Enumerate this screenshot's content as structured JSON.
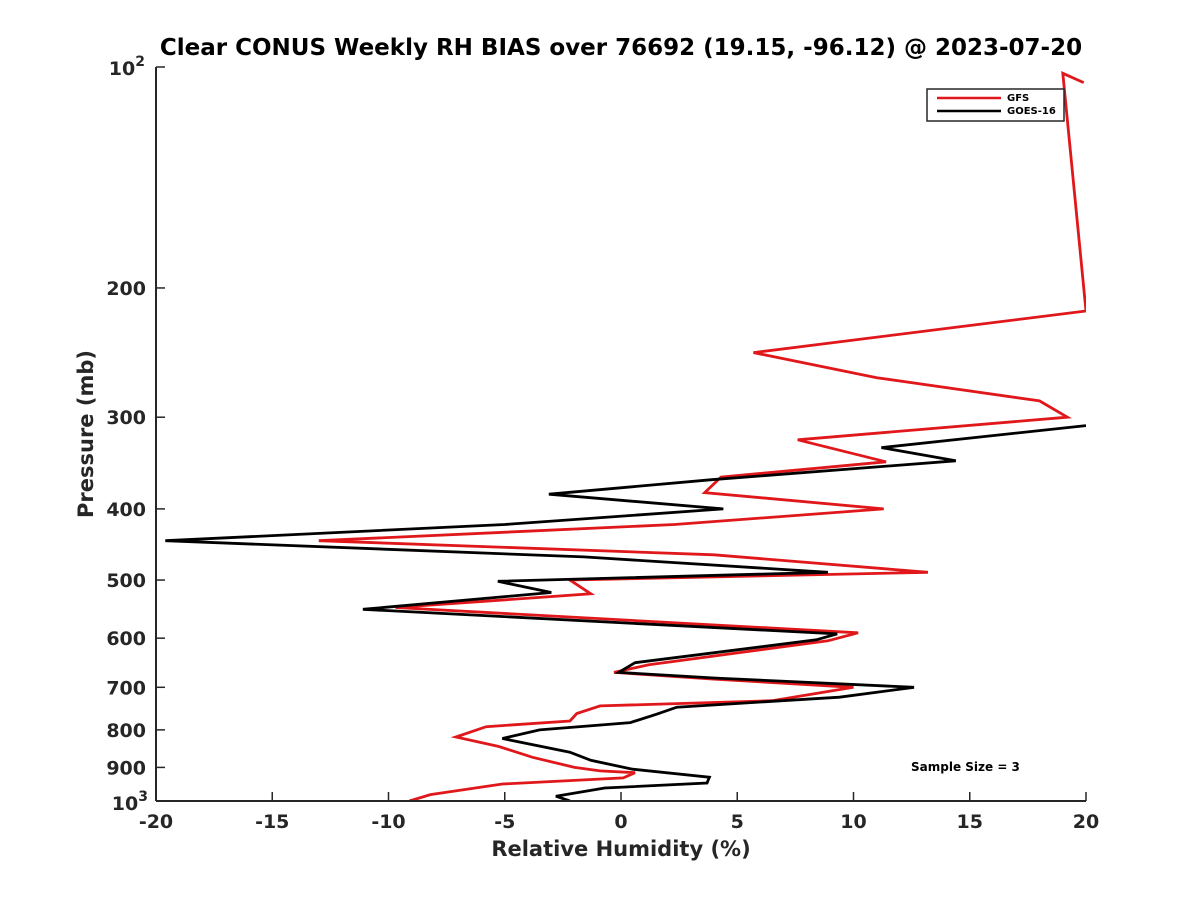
{
  "chart_data": {
    "type": "line",
    "title": "Clear CONUS Weekly RH BIAS over 76692 (19.15, -96.12) @ 2023-07-20",
    "xlabel": "Relative Humidity (%)",
    "ylabel": "Pressure (mb)",
    "xlim": [
      -20,
      20
    ],
    "ylim": [
      100,
      1000
    ],
    "y_scale": "log",
    "y_reversed": true,
    "x_ticks": [
      -20,
      -15,
      -10,
      -5,
      0,
      5,
      10,
      15,
      20
    ],
    "x_tick_labels": [
      "-20",
      "-15",
      "-10",
      "-5",
      "0",
      "5",
      "10",
      "15",
      "20"
    ],
    "y_ticks": [
      200,
      300,
      400,
      500,
      600,
      700,
      800,
      900
    ],
    "y_tick_labels": [
      "200",
      "300",
      "400",
      "500",
      "600",
      "700",
      "800",
      "900"
    ],
    "y_edge_labels": {
      "top": {
        "base": "10",
        "exp": "2"
      },
      "bottom": {
        "base": "10",
        "exp": "3"
      }
    },
    "legend": "top-right",
    "annotation": "Sample Size = 3",
    "series": [
      {
        "name": "GFS",
        "color": "#e0181b",
        "points": [
          {
            "x": 19.9,
            "p": 105
          },
          {
            "x": 19.0,
            "p": 102
          },
          {
            "x": 20.0,
            "p": 215
          },
          {
            "x": 15.0,
            "p": 225
          },
          {
            "x": 5.7,
            "p": 245
          },
          {
            "x": 11.0,
            "p": 265
          },
          {
            "x": 18.0,
            "p": 285
          },
          {
            "x": 19.2,
            "p": 300
          },
          {
            "x": 7.6,
            "p": 322
          },
          {
            "x": 11.4,
            "p": 345
          },
          {
            "x": 4.3,
            "p": 362
          },
          {
            "x": 3.6,
            "p": 380
          },
          {
            "x": 11.3,
            "p": 400
          },
          {
            "x": 2.3,
            "p": 420
          },
          {
            "x": -13.0,
            "p": 442
          },
          {
            "x": 4.0,
            "p": 462
          },
          {
            "x": 13.2,
            "p": 488
          },
          {
            "x": -2.2,
            "p": 500
          },
          {
            "x": -1.3,
            "p": 522
          },
          {
            "x": -9.7,
            "p": 545
          },
          {
            "x": 10.2,
            "p": 590
          },
          {
            "x": 8.9,
            "p": 605
          },
          {
            "x": 1.2,
            "p": 652
          },
          {
            "x": -0.3,
            "p": 668
          },
          {
            "x": 3.9,
            "p": 682
          },
          {
            "x": 10.0,
            "p": 700
          },
          {
            "x": 6.5,
            "p": 730
          },
          {
            "x": -0.9,
            "p": 742
          },
          {
            "x": -1.9,
            "p": 760
          },
          {
            "x": -2.2,
            "p": 778
          },
          {
            "x": -5.8,
            "p": 792
          },
          {
            "x": -7.1,
            "p": 818
          },
          {
            "x": -5.3,
            "p": 842
          },
          {
            "x": -3.8,
            "p": 872
          },
          {
            "x": -2.0,
            "p": 900
          },
          {
            "x": -0.9,
            "p": 910
          },
          {
            "x": 0.6,
            "p": 915
          },
          {
            "x": 0.1,
            "p": 930
          },
          {
            "x": -5.1,
            "p": 948
          },
          {
            "x": -8.2,
            "p": 980
          },
          {
            "x": -9.1,
            "p": 1000
          }
        ]
      },
      {
        "name": "GOES-16",
        "color": "#000000",
        "points": [
          {
            "x": 20.0,
            "p": 308
          },
          {
            "x": 11.2,
            "p": 330
          },
          {
            "x": 14.4,
            "p": 344
          },
          {
            "x": 3.9,
            "p": 365
          },
          {
            "x": -3.1,
            "p": 382
          },
          {
            "x": 4.4,
            "p": 400
          },
          {
            "x": -5.0,
            "p": 420
          },
          {
            "x": -19.6,
            "p": 442
          },
          {
            "x": -1.6,
            "p": 465
          },
          {
            "x": 8.9,
            "p": 488
          },
          {
            "x": -5.3,
            "p": 502
          },
          {
            "x": -3.0,
            "p": 520
          },
          {
            "x": -11.1,
            "p": 548
          },
          {
            "x": 9.3,
            "p": 592
          },
          {
            "x": 8.4,
            "p": 603
          },
          {
            "x": 0.6,
            "p": 648
          },
          {
            "x": -0.1,
            "p": 668
          },
          {
            "x": 4.1,
            "p": 680
          },
          {
            "x": 12.6,
            "p": 700
          },
          {
            "x": 9.4,
            "p": 722
          },
          {
            "x": 2.4,
            "p": 745
          },
          {
            "x": 1.5,
            "p": 762
          },
          {
            "x": 0.4,
            "p": 782
          },
          {
            "x": -3.5,
            "p": 800
          },
          {
            "x": -5.1,
            "p": 822
          },
          {
            "x": -2.2,
            "p": 858
          },
          {
            "x": -1.3,
            "p": 880
          },
          {
            "x": 0.5,
            "p": 905
          },
          {
            "x": 3.8,
            "p": 928
          },
          {
            "x": 3.7,
            "p": 945
          },
          {
            "x": -0.7,
            "p": 960
          },
          {
            "x": -2.8,
            "p": 985
          },
          {
            "x": -2.2,
            "p": 1000
          }
        ]
      }
    ]
  }
}
